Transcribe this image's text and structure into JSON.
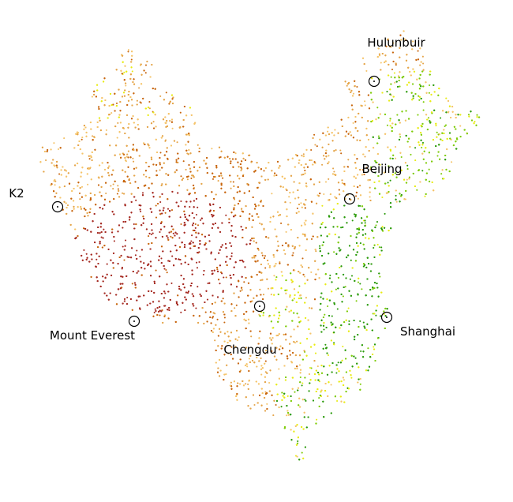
{
  "map": {
    "region": "China",
    "style": "scatter of colored elevation points",
    "color_scale": {
      "lowland_dark_green": "#2a9a0a",
      "lowland_green": "#7fcc0a",
      "yellow": "#e8ec14",
      "light_orange": "#f5c46a",
      "orange": "#e5a54a",
      "dark_orange": "#c8660e",
      "highland_red": "#a52a22"
    },
    "locations": [
      {
        "id": "hulunbuir",
        "label": "Hulunbuir"
      },
      {
        "id": "beijing",
        "label": "Beijing"
      },
      {
        "id": "k2",
        "label": "K2"
      },
      {
        "id": "mount-everest",
        "label": "Mount Everest"
      },
      {
        "id": "chengdu",
        "label": "Chengdu"
      },
      {
        "id": "shanghai",
        "label": "Shanghai"
      }
    ]
  }
}
